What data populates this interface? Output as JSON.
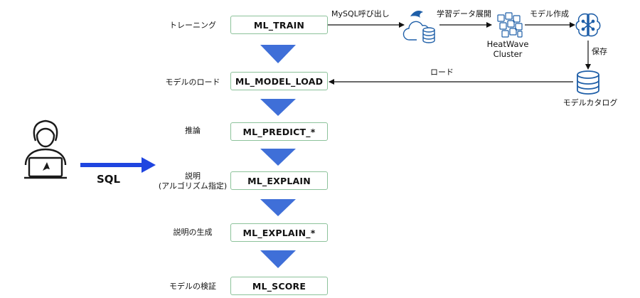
{
  "steps": [
    {
      "label": "トレーニング",
      "function": "ML_TRAIN"
    },
    {
      "label": "モデルのロード",
      "function": "ML_MODEL_LOAD"
    },
    {
      "label": "推論",
      "function": "ML_PREDICT_*"
    },
    {
      "label_line1": "説明",
      "label_line2": "(アルゴリズム指定)",
      "function": "ML_EXPLAIN"
    },
    {
      "label": "説明の生成",
      "function": "ML_EXPLAIN_*"
    },
    {
      "label": "モデルの検証",
      "function": "ML_SCORE"
    }
  ],
  "flow": {
    "mysql_call": "MySQL呼び出し",
    "deploy_data": "学習データ展開",
    "create_model": "モデル作成",
    "save": "保存",
    "load": "ロード"
  },
  "nodes": {
    "heatwave_line1": "HeatWave",
    "heatwave_line2": "Cluster",
    "model_catalog": "モデルカタログ"
  },
  "user": {
    "sql_label": "SQL"
  },
  "colors": {
    "down_arrow": "#3f6fd8",
    "sql_arrow": "#1f45e0",
    "box_border": "#8cc29a",
    "icon_blue": "#1f5fa8"
  },
  "icons": {
    "user": "user-laptop-icon",
    "mysql": "cloud-database-icon",
    "heatwave": "cluster-icon",
    "model": "ai-brain-icon",
    "catalog": "database-icon"
  }
}
